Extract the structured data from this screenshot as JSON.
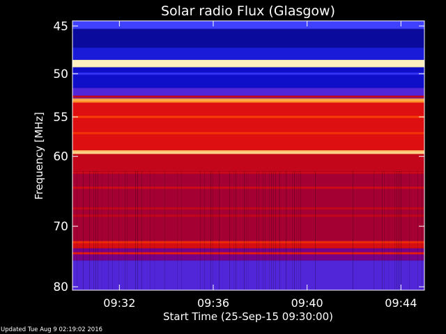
{
  "chart_data": {
    "type": "heatmap",
    "title": "Solar radio Flux (Glasgow)",
    "xlabel": "Start Time (25-Sep-15 09:30:00)",
    "ylabel": "Frequency [MHz]",
    "x_range": [
      "09:30:00",
      "09:45:00"
    ],
    "x_ticks": [
      "09:32",
      "09:36",
      "09:40",
      "09:44"
    ],
    "ylim": [
      44.5,
      80.6
    ],
    "y_scale": "log",
    "y_ticks": [
      45,
      50,
      55,
      60,
      70,
      80
    ],
    "colormap": [
      "#000040",
      "#1010d0",
      "#4040ff",
      "#6a00a0",
      "#b00020",
      "#e01010",
      "#ff4a00",
      "#ff9a30",
      "#fff0c0"
    ],
    "bands": [
      {
        "from": 44.5,
        "to": 45.3,
        "level": 0.25
      },
      {
        "from": 45.3,
        "to": 47.2,
        "level": 0.08
      },
      {
        "from": 47.2,
        "to": 48.5,
        "level": 0.15
      },
      {
        "from": 48.5,
        "to": 49.3,
        "level": 1.0
      },
      {
        "from": 49.3,
        "to": 51.6,
        "level": 0.12
      },
      {
        "from": 51.6,
        "to": 52.8,
        "level": 0.3
      },
      {
        "from": 52.8,
        "to": 53.3,
        "level": 0.85
      },
      {
        "from": 53.3,
        "to": 59.2,
        "level": 0.62
      },
      {
        "from": 59.2,
        "to": 59.7,
        "level": 0.92
      },
      {
        "from": 59.7,
        "to": 62.0,
        "level": 0.55
      },
      {
        "from": 62.0,
        "to": 72.5,
        "level": 0.48
      },
      {
        "from": 72.5,
        "to": 73.5,
        "level": 0.6
      },
      {
        "from": 73.5,
        "to": 75.5,
        "level": 0.4
      },
      {
        "from": 75.5,
        "to": 80.6,
        "level": 0.3
      }
    ],
    "lines": [
      {
        "freq": 48.9,
        "level": 1.0
      },
      {
        "freq": 50.0,
        "level": 0.22
      },
      {
        "freq": 52.6,
        "level": 0.55
      },
      {
        "freq": 53.0,
        "level": 0.9
      },
      {
        "freq": 55.0,
        "level": 0.72
      },
      {
        "freq": 57.0,
        "level": 0.7
      },
      {
        "freq": 59.5,
        "level": 0.95
      },
      {
        "freq": 62.2,
        "level": 0.58
      },
      {
        "freq": 64.3,
        "level": 0.58
      },
      {
        "freq": 67.3,
        "level": 0.55
      },
      {
        "freq": 68.4,
        "level": 0.55
      },
      {
        "freq": 72.5,
        "level": 0.68
      },
      {
        "freq": 74.3,
        "level": 0.65
      }
    ]
  },
  "footer": {
    "updated_label": "Updated Tue Aug  9 02:19:02 2016"
  }
}
